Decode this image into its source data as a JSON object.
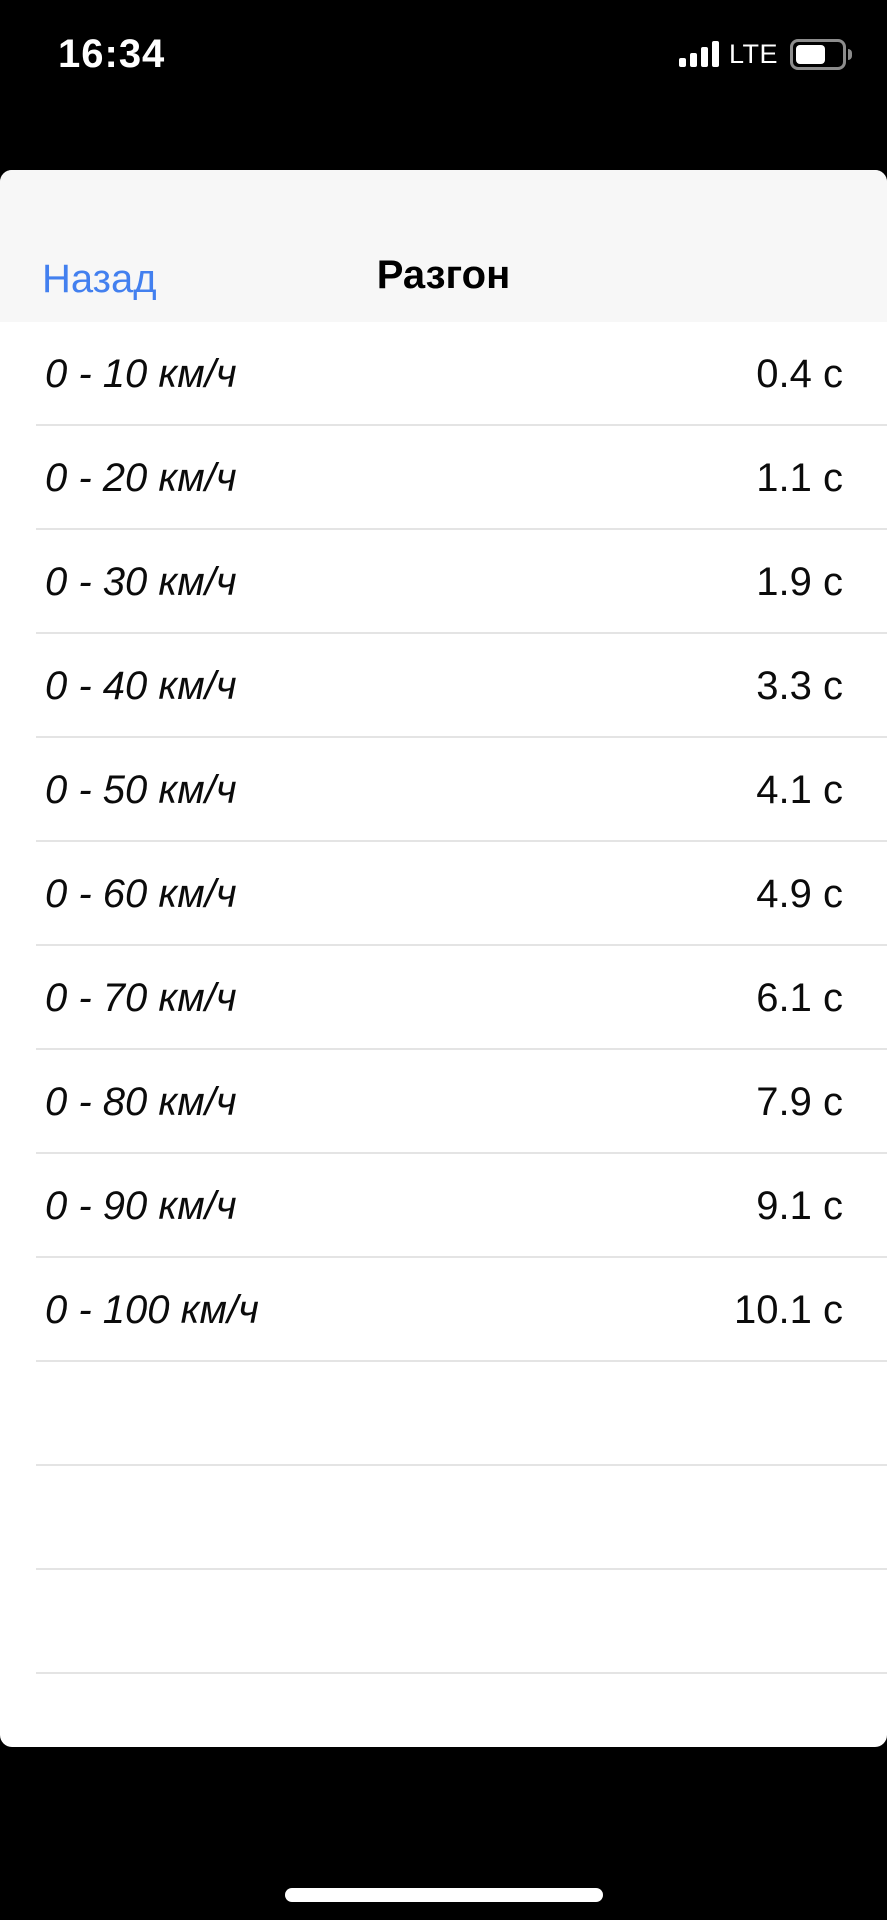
{
  "status_bar": {
    "time": "16:34",
    "network": "LTE",
    "signal_bars": 4,
    "battery_percent": 65
  },
  "nav": {
    "back_label": "Назад",
    "title": "Разгон"
  },
  "list": {
    "rows": [
      {
        "label": "0 - 10 км/ч",
        "value": "0.4 с"
      },
      {
        "label": "0 - 20 км/ч",
        "value": "1.1 с"
      },
      {
        "label": "0 - 30 км/ч",
        "value": "1.9 с"
      },
      {
        "label": "0 - 40 км/ч",
        "value": "3.3 с"
      },
      {
        "label": "0 - 50 км/ч",
        "value": "4.1 с"
      },
      {
        "label": "0 - 60 км/ч",
        "value": "4.9 с"
      },
      {
        "label": "0 - 70 км/ч",
        "value": "6.1 с"
      },
      {
        "label": "0 - 80 км/ч",
        "value": "7.9 с"
      },
      {
        "label": "0 - 90 км/ч",
        "value": "9.1 с"
      },
      {
        "label": "0 - 100 км/ч",
        "value": "10.1 с"
      }
    ],
    "empty_rows": 3
  },
  "icons": {
    "signal": "cellular-signal-icon",
    "battery": "battery-icon"
  },
  "colors": {
    "accent": "#4380ef",
    "divider": "#e4e4e4",
    "nav_bg": "#f7f7f7",
    "sheet_bg": "#ffffff",
    "page_bg": "#000000",
    "text": "#0b0b0b"
  }
}
